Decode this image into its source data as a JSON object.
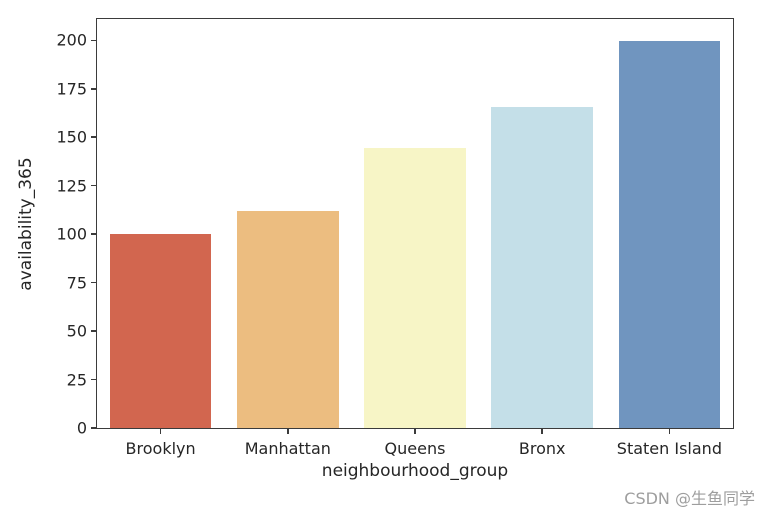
{
  "figure": {
    "background": "#ffffff"
  },
  "chart_data": {
    "type": "bar",
    "title": "",
    "xlabel": "neighbourhood_group",
    "ylabel": "availability_365",
    "categories": [
      "Brooklyn",
      "Manhattan",
      "Queens",
      "Bronx",
      "Staten Island"
    ],
    "values": [
      100.2,
      112.0,
      144.5,
      165.8,
      199.7
    ],
    "bar_colors": [
      "#d2664f",
      "#ecbd80",
      "#f7f5c6",
      "#c4dfe8",
      "#7095bf"
    ],
    "ylim": [
      0,
      211
    ],
    "yticks": [
      0,
      25,
      50,
      75,
      100,
      125,
      150,
      175,
      200
    ],
    "grid": false,
    "legend": null,
    "bar_width_fraction": 0.8,
    "axis_color": "#3b3b3b",
    "tick_label_color": "#262626"
  },
  "watermark": {
    "text": "CSDN @生鱼同学",
    "color": "#9e9e9e"
  }
}
